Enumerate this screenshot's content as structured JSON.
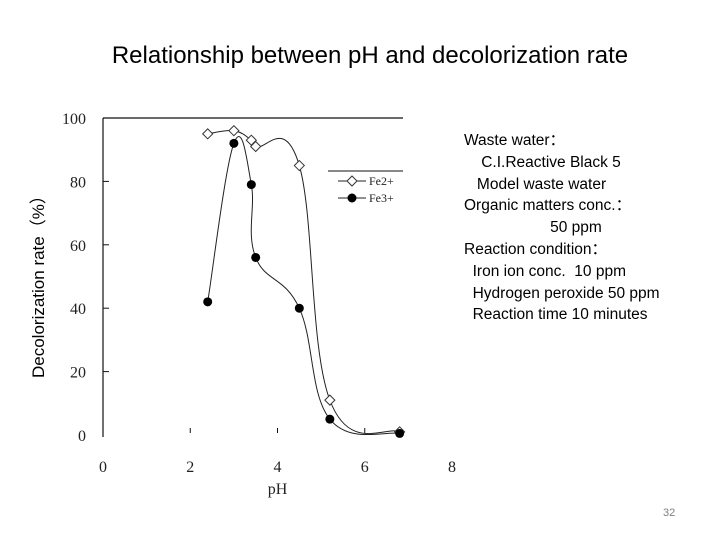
{
  "slide": {
    "title": "Relationship between pH and decolorization rate",
    "page_number": "32"
  },
  "info_box": {
    "lines": [
      "Waste water：",
      "    C.I.Reactive Black 5",
      "   Model waste water",
      "Organic matters conc.：",
      "                    50 ppm",
      "Reaction condition：",
      "  Iron ion conc.  10 ppm",
      "  Hydrogen peroxide 50 ppm",
      "  Reaction time 10 minutes"
    ]
  },
  "chart_data": {
    "type": "line",
    "title": "Relationship between pH and decolorization rate",
    "xlabel": "pH",
    "ylabel": "Decolorization rate（%）",
    "xlim": [
      0,
      8
    ],
    "ylim": [
      0,
      100
    ],
    "x_ticks": [
      0,
      2,
      4,
      6,
      8
    ],
    "y_ticks": [
      0,
      20,
      40,
      60,
      80,
      100
    ],
    "grid": false,
    "legend_position": "upper right inside plot",
    "series": [
      {
        "name": "Fe2+",
        "marker": "open-diamond",
        "x": [
          2.4,
          3.0,
          3.4,
          3.5,
          4.5,
          5.2,
          6.8
        ],
        "values": [
          95,
          96,
          93,
          91,
          85,
          11,
          1
        ]
      },
      {
        "name": "Fe3+",
        "marker": "filled-circle",
        "x": [
          2.4,
          3.0,
          3.4,
          3.5,
          4.5,
          5.2,
          6.8
        ],
        "values": [
          42,
          92,
          79,
          56,
          40,
          5,
          0.5
        ]
      }
    ]
  }
}
